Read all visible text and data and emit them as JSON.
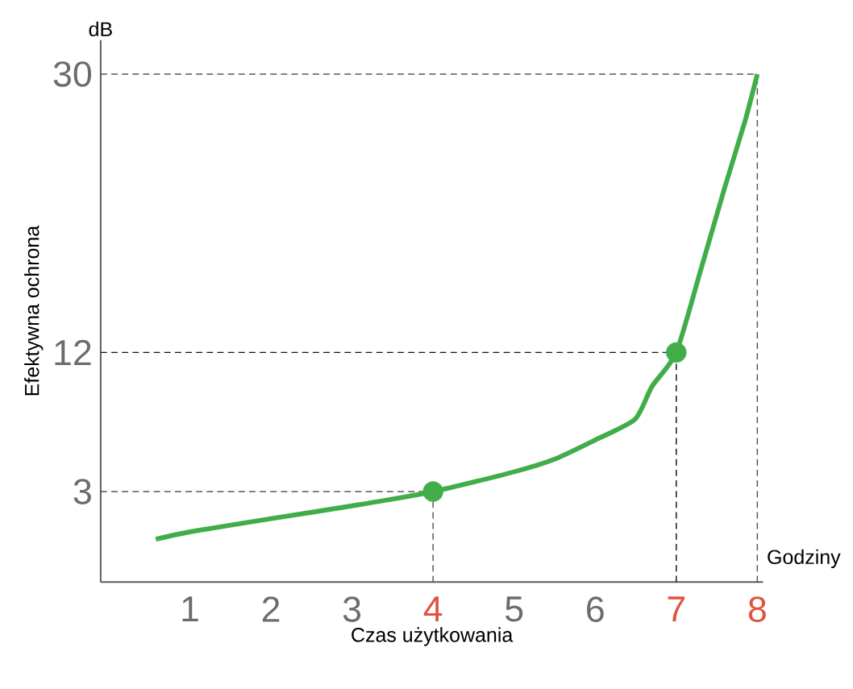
{
  "chart_data": {
    "type": "line",
    "xlabel": "Czas użytkowania",
    "ylabel": "Efektywna ochrona",
    "annotations": [
      "dB",
      "Godziny"
    ],
    "xlim": [
      -0.1,
      8.07
    ],
    "ylim": [
      -2.85,
      32.2
    ],
    "xticks": [
      1,
      2,
      3,
      4,
      5,
      6,
      7,
      8
    ],
    "yticks": [
      3,
      12,
      30
    ],
    "grid": false,
    "marker": "none",
    "line_style": "solid",
    "series": [
      {
        "color": "#41ad49",
        "x": [
          0.58,
          1,
          2,
          3,
          4,
          5,
          5.5,
          6,
          6.49,
          6.7,
          7,
          7.3,
          7.6,
          7.85,
          8
        ],
        "values": [
          -0.08,
          0.4,
          1.25,
          2.08,
          3,
          4.28,
          5.1,
          6.34,
          7.67,
          9.8,
          12,
          17.3,
          22.7,
          27,
          30
        ]
      },
      {
        "type": "scatter",
        "marker": "circle",
        "color": "#41ad49",
        "x": [
          4,
          7
        ],
        "values": [
          3,
          12
        ]
      }
    ],
    "ref_lines": [
      {
        "axis": "x",
        "value": 4,
        "color": "#555555",
        "line_style": "dashed"
      },
      {
        "axis": "x",
        "value": 7,
        "color": "#111111",
        "line_style": "dashed"
      },
      {
        "axis": "x",
        "value": 8,
        "color": "#555555",
        "line_style": "dashed"
      },
      {
        "axis": "y",
        "value": 3,
        "color": "#555555",
        "line_style": "dashed"
      },
      {
        "axis": "y",
        "value": 12,
        "color": "#111111",
        "line_style": "dashed"
      },
      {
        "axis": "y",
        "value": 30,
        "color": "#555555",
        "line_style": "dashed"
      }
    ]
  }
}
